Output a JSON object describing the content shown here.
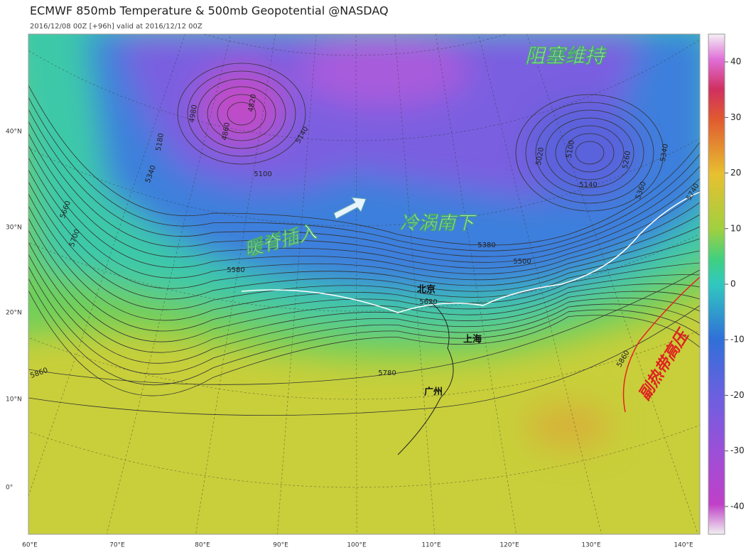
{
  "header": {
    "title": "ECMWF 850mb Temperature & 500mb Geopotential @NASDAQ",
    "subtitle": "2016/12/08 00Z [+96h] valid at 2016/12/12 00Z"
  },
  "map": {
    "lat_labels": [
      "40°N",
      "30°N",
      "20°N",
      "10°N",
      "0°"
    ],
    "lon_labels": [
      "60°E",
      "70°E",
      "80°E",
      "90°E",
      "100°E",
      "110°E",
      "120°E",
      "130°E",
      "140°E"
    ],
    "annotations": [
      "阻塞维持",
      "暖脊插入",
      "冷涡南下",
      "副热带高压"
    ],
    "cities": [
      "北京",
      "上海",
      "广州"
    ],
    "contour_labels": [
      "4820",
      "4860",
      "4980",
      "5180",
      "5100",
      "5140",
      "5340",
      "5660",
      "5700",
      "5380",
      "5500",
      "5620",
      "5780",
      "5860",
      "5860",
      "5100",
      "5020",
      "5140",
      "5260",
      "5340",
      "5360",
      "5740",
      "5580"
    ]
  },
  "colorbar": {
    "range": [
      -45,
      45
    ],
    "ticks": [
      40,
      30,
      20,
      10,
      0,
      -10,
      -20,
      -30,
      -40
    ]
  }
}
